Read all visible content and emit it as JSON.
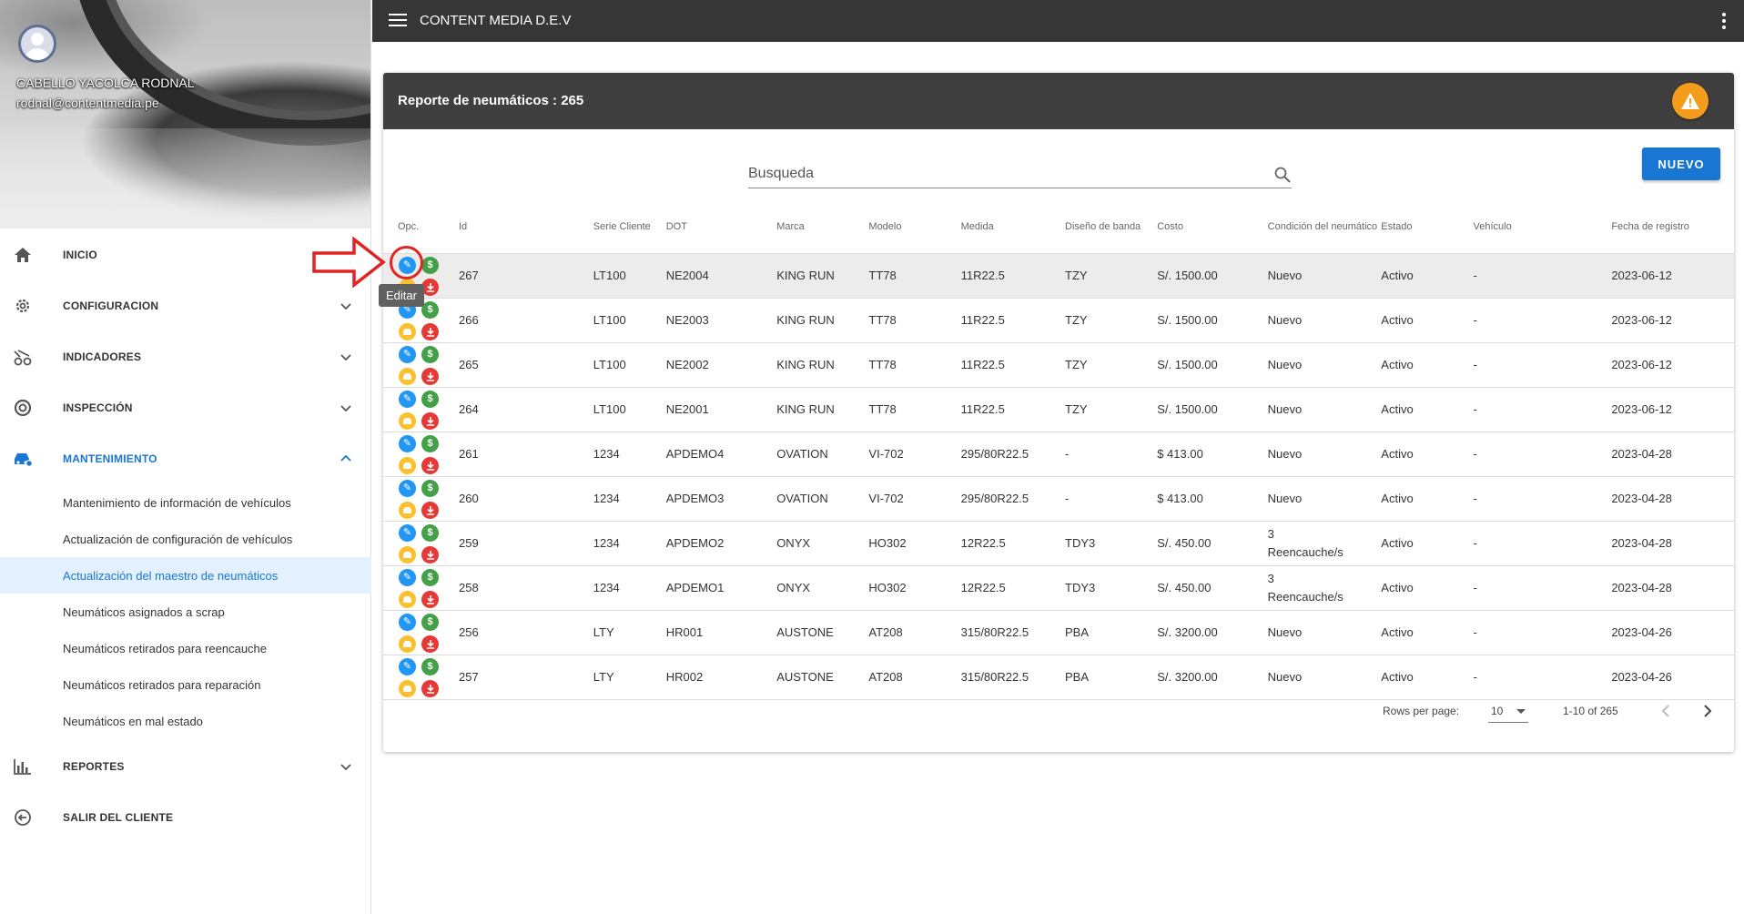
{
  "app": {
    "title": "CONTENT MEDIA D.E.V"
  },
  "user": {
    "name": "CABELLO YACOLCA RODNAL",
    "email": "rodnal@contentmedia.pe"
  },
  "sidebar": {
    "items": [
      {
        "label": "INICIO",
        "icon": "home-icon"
      },
      {
        "label": "CONFIGURACION",
        "icon": "gear-icon"
      },
      {
        "label": "INDICADORES",
        "icon": "indicators-icon"
      },
      {
        "label": "INSPECCIÓN",
        "icon": "inspection-icon"
      },
      {
        "label": "MANTENIMIENTO",
        "icon": "car-icon"
      },
      {
        "label": "REPORTES",
        "icon": "bar-chart-icon"
      },
      {
        "label": "SALIR DEL CLIENTE",
        "icon": "exit-icon"
      }
    ],
    "maintenance_subitems": [
      "Mantenimiento de información de vehículos",
      "Actualización de configuración de vehículos",
      "Actualización del maestro de neumáticos",
      "Neumáticos asignados a scrap",
      "Neumáticos retirados para reencauche",
      "Neumáticos retirados para reparación",
      "Neumáticos en mal estado"
    ],
    "active_color": "#1976d2"
  },
  "report": {
    "title": "Reporte de neumáticos : 265",
    "search_placeholder": "Busqueda",
    "new_button": "NUEVO",
    "warning_color": "#f59c1a"
  },
  "table": {
    "headers": [
      "Opc.",
      "Id",
      "Serie Cliente",
      "DOT",
      "Marca",
      "Modelo",
      "Medida",
      "Diseño de banda",
      "Costo",
      "Condición del neumático",
      "Estado",
      "Vehículo",
      "Fecha de registro"
    ],
    "rows": [
      [
        "267",
        "LT100",
        "NE2004",
        "KING RUN",
        "TT78",
        "11R22.5",
        "TZY",
        "S/. 1500.00",
        "Nuevo",
        "Activo",
        "-",
        "2023-06-12"
      ],
      [
        "266",
        "LT100",
        "NE2003",
        "KING RUN",
        "TT78",
        "11R22.5",
        "TZY",
        "S/. 1500.00",
        "Nuevo",
        "Activo",
        "-",
        "2023-06-12"
      ],
      [
        "265",
        "LT100",
        "NE2002",
        "KING RUN",
        "TT78",
        "11R22.5",
        "TZY",
        "S/. 1500.00",
        "Nuevo",
        "Activo",
        "-",
        "2023-06-12"
      ],
      [
        "264",
        "LT100",
        "NE2001",
        "KING RUN",
        "TT78",
        "11R22.5",
        "TZY",
        "S/. 1500.00",
        "Nuevo",
        "Activo",
        "-",
        "2023-06-12"
      ],
      [
        "261",
        "1234",
        "APDEMO4",
        "OVATION",
        "VI-702",
        "295/80R22.5",
        "-",
        "$ 413.00",
        "Nuevo",
        "Activo",
        "-",
        "2023-04-28"
      ],
      [
        "260",
        "1234",
        "APDEMO3",
        "OVATION",
        "VI-702",
        "295/80R22.5",
        "-",
        "$ 413.00",
        "Nuevo",
        "Activo",
        "-",
        "2023-04-28"
      ],
      [
        "259",
        "1234",
        "APDEMO2",
        "ONYX",
        "HO302",
        "12R22.5",
        "TDY3",
        "S/. 450.00",
        "3 Reencauche/s",
        "Activo",
        "-",
        "2023-04-28"
      ],
      [
        "258",
        "1234",
        "APDEMO1",
        "ONYX",
        "HO302",
        "12R22.5",
        "TDY3",
        "S/. 450.00",
        "3 Reencauche/s",
        "Activo",
        "-",
        "2023-04-28"
      ],
      [
        "256",
        "LTY",
        "HR001",
        "AUSTONE",
        "AT208",
        "315/80R22.5",
        "PBA",
        "S/. 3200.00",
        "Nuevo",
        "Activo",
        "-",
        "2023-04-26"
      ],
      [
        "257",
        "LTY",
        "HR002",
        "AUSTONE",
        "AT208",
        "315/80R22.5",
        "PBA",
        "S/. 3200.00",
        "Nuevo",
        "Activo",
        "-",
        "2023-04-26"
      ]
    ],
    "action_icons": {
      "edit": "pencil-icon",
      "money": "dollar-icon",
      "vehicle": "car-icon",
      "download": "download-icon"
    },
    "action_money_glyph": "$",
    "action_edit_glyph": "✎"
  },
  "pagination": {
    "rows_per_page_label": "Rows per page:",
    "rows_per_page": "10",
    "range": "1-10 of 265"
  },
  "tooltip": {
    "text": "Editar"
  }
}
